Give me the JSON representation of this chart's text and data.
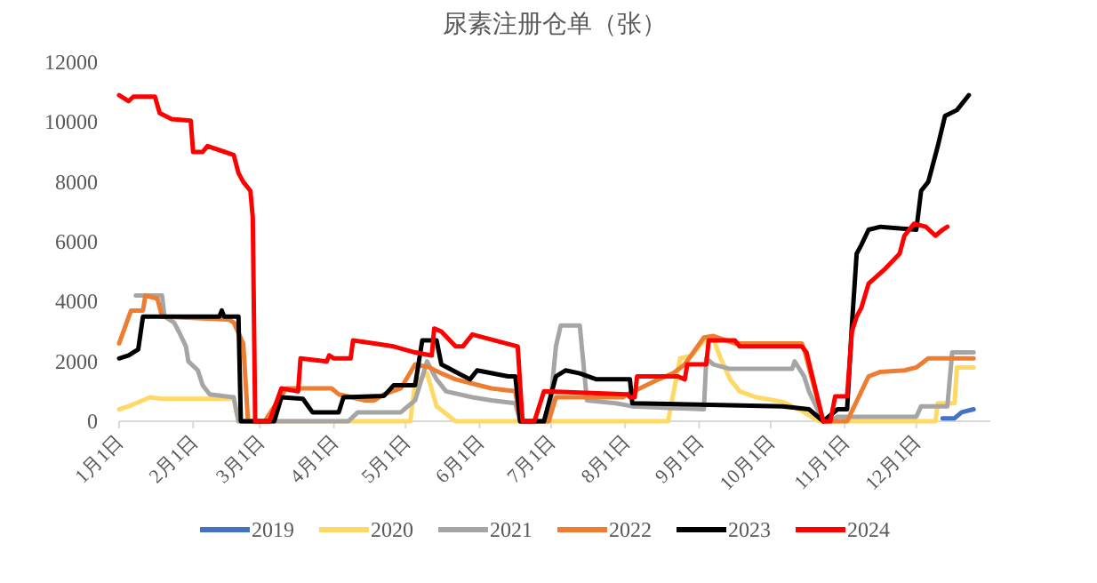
{
  "chart_data": {
    "type": "line",
    "title": "尿素注册仓单（张）",
    "xlim": [
      "--01-01",
      "--12-31"
    ],
    "ylim": [
      0,
      12000
    ],
    "yticks": [
      0,
      2000,
      4000,
      6000,
      8000,
      10000,
      12000
    ],
    "xticks": [
      {
        "value": "--01-01",
        "label": "1月1日"
      },
      {
        "value": "--02-01",
        "label": "2月1日"
      },
      {
        "value": "--03-01",
        "label": "3月1日"
      },
      {
        "value": "--04-01",
        "label": "4月1日"
      },
      {
        "value": "--05-01",
        "label": "5月1日"
      },
      {
        "value": "--06-01",
        "label": "6月1日"
      },
      {
        "value": "--07-01",
        "label": "7月1日"
      },
      {
        "value": "--08-01",
        "label": "8月1日"
      },
      {
        "value": "--09-01",
        "label": "9月1日"
      },
      {
        "value": "--10-01",
        "label": "10月1日"
      },
      {
        "value": "--11-01",
        "label": "11月1日"
      },
      {
        "value": "--12-01",
        "label": "12月1日"
      }
    ],
    "grid": false,
    "legend": "bottom",
    "marker": "none",
    "line_style": "solid",
    "series": [
      {
        "name": "2019",
        "color": "#4472c4",
        "x": [
          "--12-12",
          "--12-17",
          "--12-20",
          "--12-25"
        ],
        "values": [
          100,
          100,
          300,
          400
        ]
      },
      {
        "name": "2020",
        "color": "#ffd966",
        "x": [
          "--01-01",
          "--01-05",
          "--01-08",
          "--01-14",
          "--01-19",
          "--02-18",
          "--02-20",
          "--05-03",
          "--05-05",
          "--05-10",
          "--05-14",
          "--05-22",
          "--08-19",
          "--08-24",
          "--08-29",
          "--09-03",
          "--09-07",
          "--09-10",
          "--09-14",
          "--09-18",
          "--09-25",
          "--10-06",
          "--10-14",
          "--10-21",
          "--12-09",
          "--12-10",
          "--12-17",
          "--12-18",
          "--12-25"
        ],
        "values": [
          400,
          500,
          600,
          800,
          750,
          750,
          0,
          0,
          1300,
          1600,
          500,
          0,
          0,
          2100,
          2200,
          2700,
          2750,
          2100,
          1400,
          1000,
          800,
          650,
          350,
          0,
          0,
          600,
          600,
          1800,
          1800
        ]
      },
      {
        "name": "2021",
        "color": "#a5a5a5",
        "x": [
          "--01-08",
          "--01-19",
          "--01-20",
          "--01-24",
          "--01-26",
          "--01-29",
          "--01-30",
          "--02-03",
          "--02-05",
          "--02-08",
          "--02-18",
          "--02-20",
          "--04-07",
          "--04-11",
          "--04-29",
          "--05-05",
          "--05-10",
          "--05-14",
          "--05-18",
          "--05-29",
          "--06-06",
          "--06-16",
          "--06-18",
          "--06-30",
          "--07-03",
          "--07-05",
          "--07-13",
          "--07-16",
          "--07-28",
          "--08-04",
          "--09-03",
          "--09-04",
          "--09-07",
          "--09-14",
          "--10-10",
          "--10-11",
          "--10-15",
          "--10-17",
          "--10-23",
          "--10-26",
          "--10-29",
          "--12-01",
          "--12-03",
          "--12-14",
          "--12-16",
          "--12-25"
        ],
        "values": [
          4200,
          4200,
          3500,
          3300,
          3000,
          2500,
          2000,
          1700,
          1200,
          900,
          800,
          0,
          0,
          300,
          300,
          700,
          2000,
          1400,
          1000,
          800,
          700,
          600,
          0,
          0,
          2500,
          3200,
          3200,
          700,
          600,
          500,
          400,
          2100,
          1900,
          1750,
          1750,
          2000,
          1500,
          1000,
          0,
          0,
          150,
          150,
          500,
          500,
          2300,
          2300
        ]
      },
      {
        "name": "2022",
        "color": "#ed7d31",
        "x": [
          "--01-01",
          "--01-06",
          "--01-11",
          "--01-12",
          "--01-17",
          "--01-19",
          "--02-16",
          "--02-18",
          "--02-22",
          "--02-24",
          "--03-03",
          "--03-12",
          "--03-31",
          "--04-03",
          "--04-14",
          "--04-18",
          "--04-22",
          "--04-29",
          "--05-05",
          "--05-11",
          "--05-16",
          "--05-22",
          "--06-06",
          "--06-16",
          "--06-18",
          "--06-30",
          "--07-03",
          "--07-31",
          "--08-02",
          "--08-15",
          "--08-21",
          "--08-26",
          "--09-03",
          "--09-07",
          "--09-16",
          "--10-14",
          "--10-15",
          "--10-23",
          "--11-02",
          "--11-05",
          "--11-11",
          "--11-16",
          "--11-26",
          "--12-01",
          "--12-06",
          "--12-25"
        ],
        "values": [
          2600,
          3700,
          3700,
          4200,
          4100,
          3500,
          3400,
          3300,
          2600,
          0,
          0,
          1100,
          1100,
          900,
          700,
          700,
          900,
          1100,
          1900,
          1800,
          1600,
          1400,
          1100,
          1000,
          0,
          0,
          800,
          800,
          900,
          1400,
          1600,
          1900,
          2800,
          2850,
          2600,
          2600,
          2400,
          0,
          0,
          500,
          1500,
          1650,
          1700,
          1800,
          2100,
          2100
        ]
      },
      {
        "name": "2023",
        "color": "#000000",
        "x": [
          "--01-01",
          "--01-05",
          "--01-09",
          "--01-11",
          "--02-12",
          "--02-13",
          "--02-14",
          "--02-20",
          "--02-21",
          "--03-07",
          "--03-10",
          "--03-19",
          "--03-23",
          "--04-03",
          "--04-05",
          "--04-22",
          "--04-26",
          "--05-05",
          "--05-08",
          "--05-14",
          "--05-16",
          "--05-28",
          "--05-31",
          "--06-13",
          "--06-16",
          "--06-18",
          "--06-28",
          "--07-03",
          "--07-07",
          "--07-13",
          "--07-20",
          "--08-03",
          "--08-04",
          "--10-06",
          "--10-17",
          "--10-23",
          "--10-26",
          "--10-29",
          "--11-02",
          "--11-04",
          "--11-06",
          "--11-08",
          "--11-11",
          "--11-16",
          "--12-01",
          "--12-03",
          "--12-06",
          "--12-07",
          "--12-10",
          "--12-13",
          "--12-18",
          "--12-23"
        ],
        "values": [
          2100,
          2200,
          2400,
          3500,
          3500,
          3700,
          3500,
          3500,
          0,
          0,
          800,
          750,
          300,
          300,
          800,
          850,
          1200,
          1200,
          2700,
          2700,
          1900,
          1400,
          1700,
          1500,
          1500,
          0,
          0,
          1500,
          1700,
          1600,
          1400,
          1400,
          600,
          500,
          400,
          0,
          200,
          400,
          400,
          3200,
          5600,
          5900,
          6400,
          6500,
          6400,
          7700,
          8000,
          8300,
          9200,
          10200,
          10400,
          10900
        ]
      },
      {
        "name": "2024",
        "color": "#ff0000",
        "x": [
          "--01-01",
          "--01-05",
          "--01-07",
          "--01-16",
          "--01-18",
          "--01-23",
          "--01-31",
          "--02-01",
          "--02-05",
          "--02-07",
          "--02-18",
          "--02-20",
          "--02-22",
          "--02-25",
          "--02-26",
          "--02-27",
          "--03-05",
          "--03-10",
          "--03-17",
          "--03-18",
          "--03-29",
          "--03-30",
          "--04-01",
          "--04-08",
          "--04-09",
          "--04-18",
          "--04-26",
          "--05-05",
          "--05-12",
          "--05-13",
          "--05-16",
          "--05-22",
          "--05-25",
          "--05-29",
          "--06-17",
          "--06-19",
          "--06-24",
          "--06-28",
          "--08-02",
          "--08-03",
          "--08-05",
          "--08-06",
          "--08-23",
          "--08-26",
          "--08-27",
          "--09-04",
          "--09-05",
          "--09-16",
          "--09-18",
          "--10-14",
          "--10-16",
          "--10-23",
          "--10-26",
          "--10-28",
          "--11-02",
          "--11-04",
          "--11-06",
          "--11-08",
          "--11-11",
          "--11-18",
          "--11-24",
          "--11-26",
          "--11-30",
          "--12-05",
          "--12-09",
          "--12-12",
          "--12-14"
        ],
        "values": [
          10900,
          10700,
          10850,
          10850,
          10300,
          10100,
          10050,
          9000,
          9000,
          9200,
          8900,
          8300,
          8000,
          7700,
          6800,
          0,
          0,
          1100,
          1000,
          2100,
          2000,
          2200,
          2100,
          2100,
          2700,
          2600,
          2500,
          2300,
          2200,
          3100,
          3000,
          2500,
          2500,
          2900,
          2500,
          0,
          0,
          1000,
          900,
          800,
          800,
          1500,
          1500,
          1400,
          1900,
          1900,
          2700,
          2700,
          2500,
          2500,
          2300,
          0,
          0,
          830,
          830,
          3000,
          3500,
          3800,
          4600,
          5100,
          5600,
          6200,
          6600,
          6500,
          6200,
          6400,
          6500
        ]
      }
    ]
  }
}
